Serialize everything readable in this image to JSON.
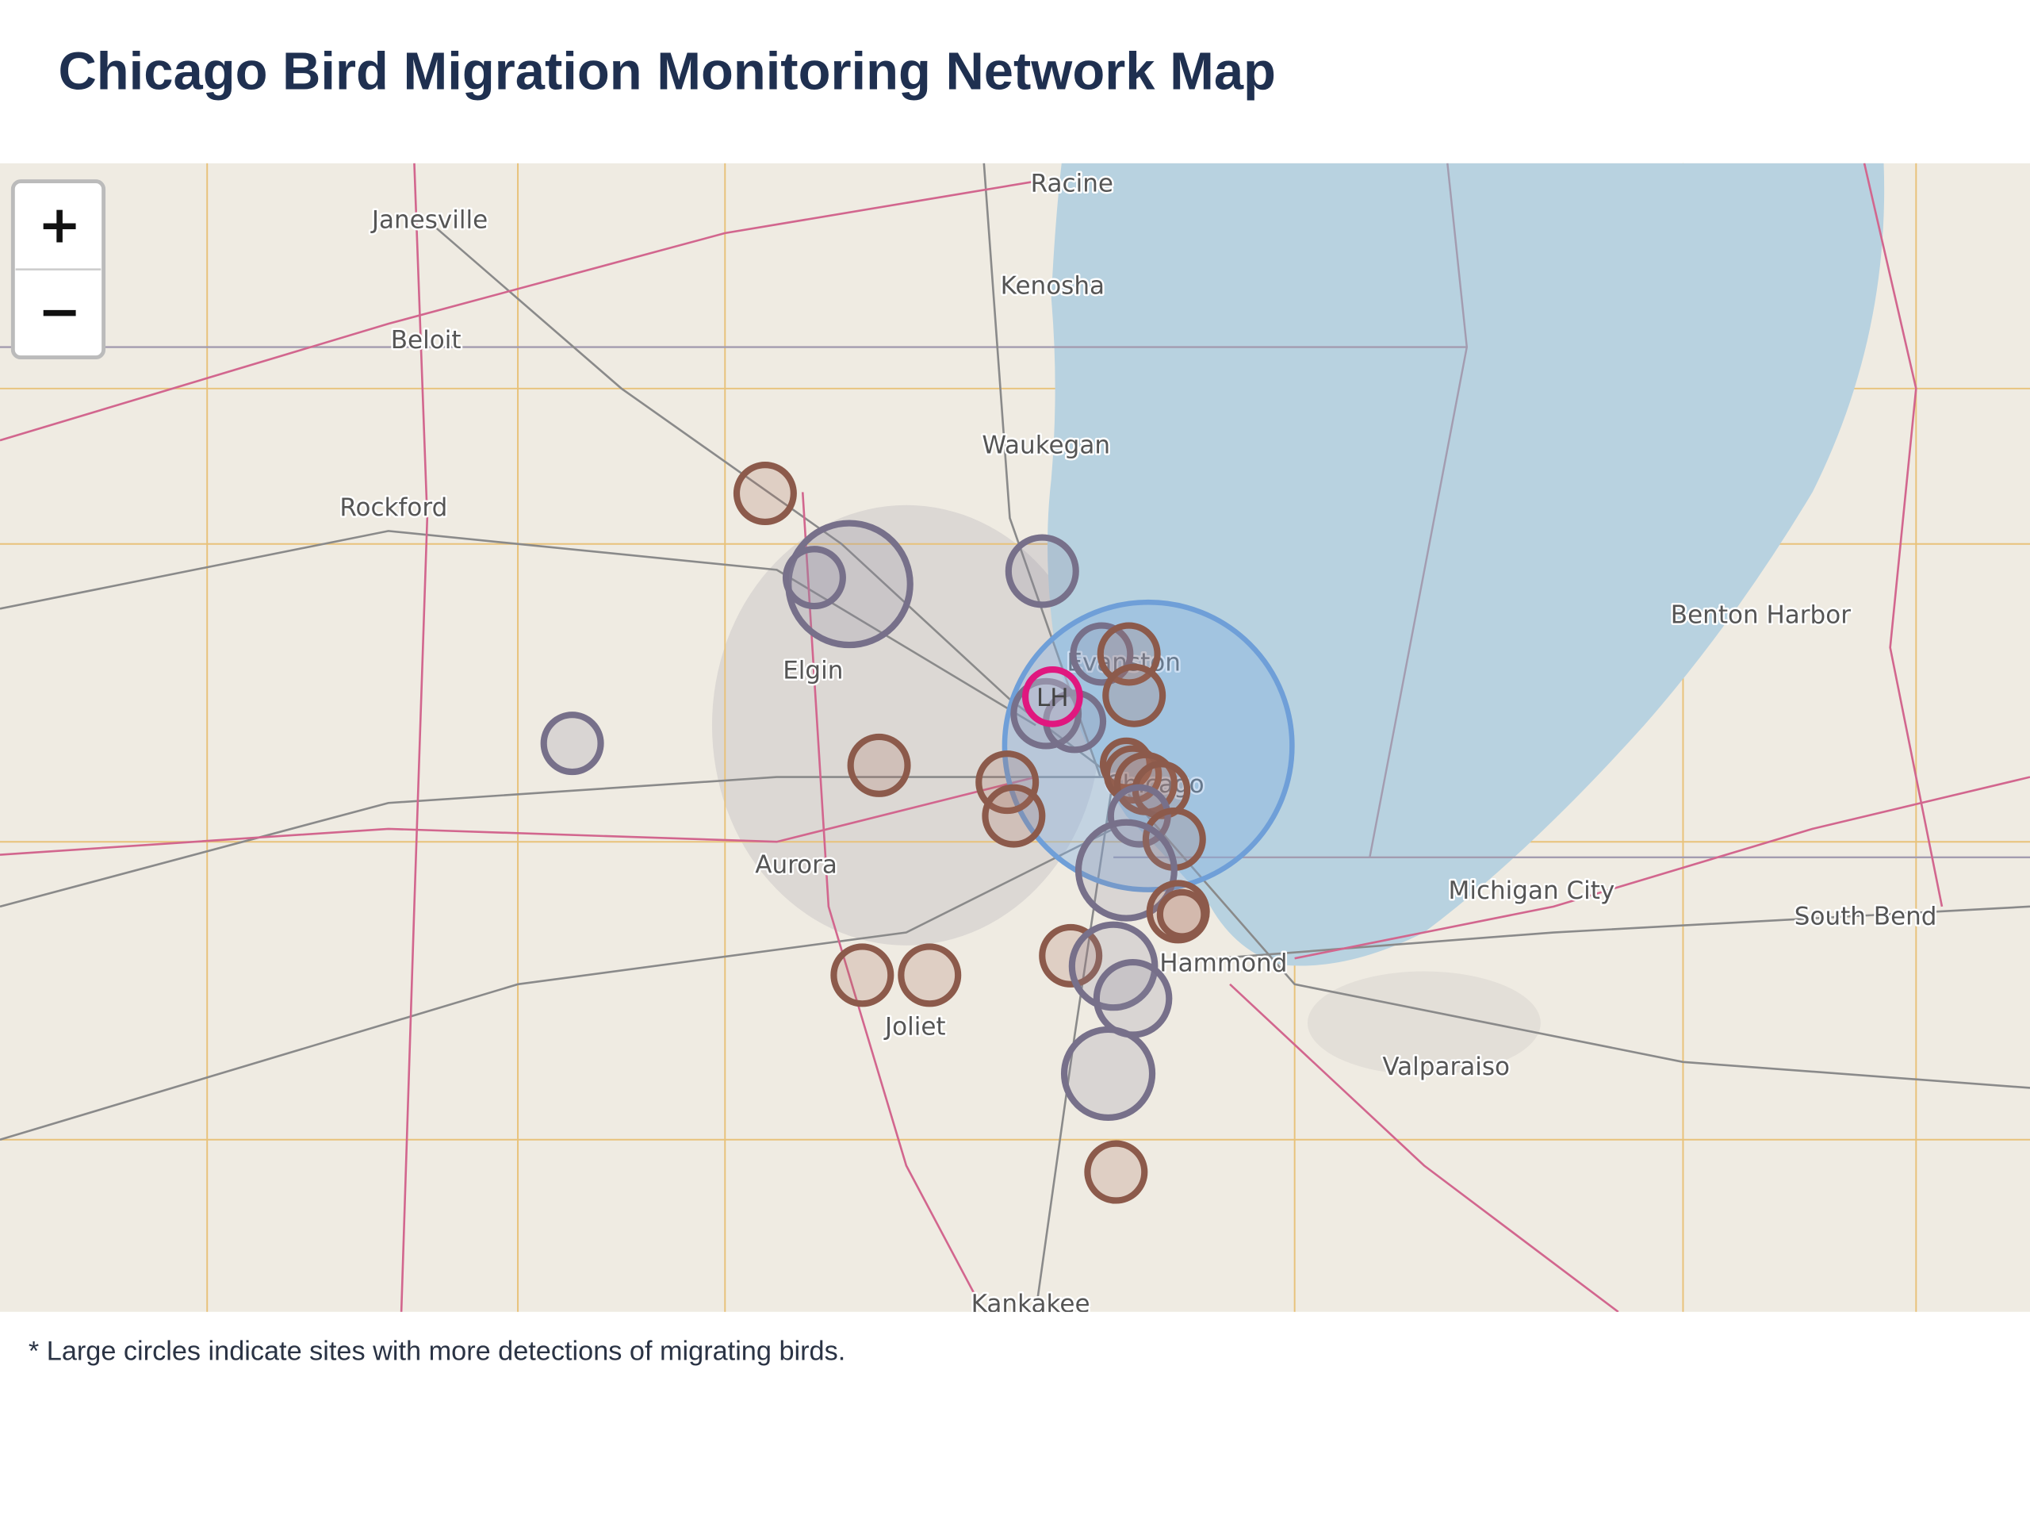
{
  "header": {
    "title": "Chicago Bird Migration Monitoring Network Map"
  },
  "zoom": {
    "in": "+",
    "out": "−"
  },
  "map_labels": [
    "Racine",
    "Janesville",
    "Kenosha",
    "Beloit",
    "Waukegan",
    "Rockford",
    "Benton Harbor",
    "Elgin",
    "Evanston",
    "Chicago",
    "Aurora",
    "Michigan City",
    "South Bend",
    "Hammond",
    "Joliet",
    "Valparaiso",
    "Kankakee"
  ],
  "marker_label": "LH",
  "footnote": "* Large circles indicate sites with more detections of migrating birds."
}
